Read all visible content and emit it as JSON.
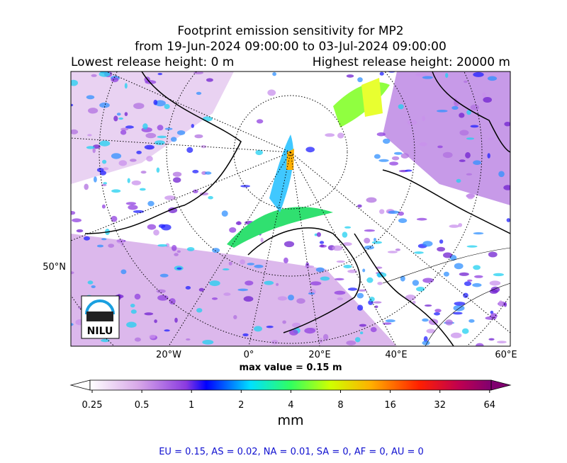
{
  "title": {
    "line1": "Footprint emission sensitivity for MP2",
    "line2": "from 19-Jun-2024 09:00:00 to 03-Jul-2024 09:00:00",
    "line3_left": "Lowest release height: 0 m",
    "line3_right": "Highest release height: 20000 m"
  },
  "map": {
    "lat_labels": [
      "50°N"
    ],
    "lon_labels": [
      "20°W",
      "0°",
      "20°E",
      "40°E",
      "60°E"
    ],
    "max_value": "max value = 0.15 m",
    "logo": "NILU"
  },
  "colorbar": {
    "ticks": [
      "0.25",
      "0.5",
      "1",
      "2",
      "4",
      "8",
      "16",
      "32",
      "64"
    ],
    "unit": "mm"
  },
  "footer": "EU = 0.15,  AS = 0.02,  NA = 0.01,  SA = 0,  AF = 0,  AU = 0"
}
